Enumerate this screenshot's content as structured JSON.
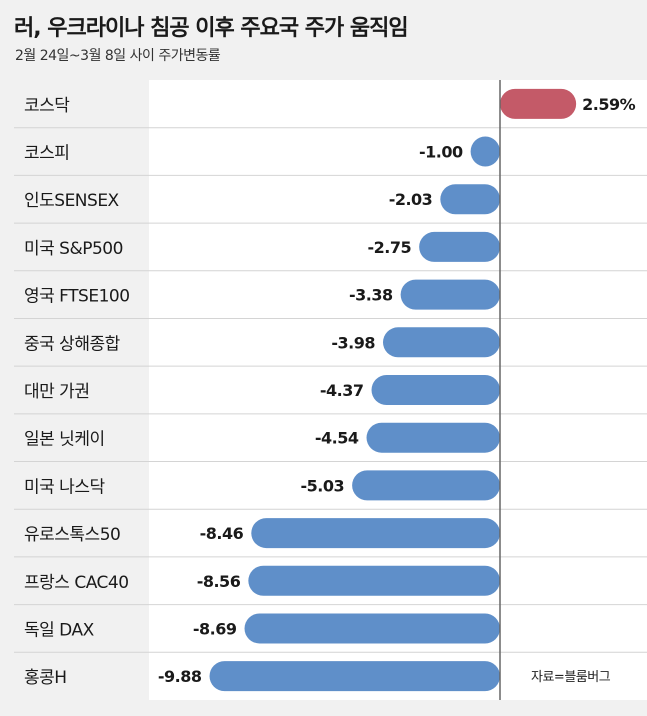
{
  "title": "러, 우크라이나 침공 이후 주요국 주가 움직임",
  "subtitle": "2월 24일~3월 8일 사이 주가변동률",
  "source": "자료=블룸버그",
  "colors": {
    "positive": "#c45a68",
    "negative": "#5f8fc9",
    "background": "#f1f1f1",
    "panel": "#ffffff",
    "row_divider": "#d4d4d4",
    "zero_line": "#666666"
  },
  "chart_data": {
    "type": "bar",
    "orientation": "horizontal",
    "title": "러, 우크라이나 침공 이후 주요국 주가 움직임",
    "subtitle": "2월 24일~3월 8일 사이 주가변동률",
    "categories": [
      "코스닥",
      "코스피",
      "인도SENSEX",
      "미국 S&P500",
      "영국 FTSE100",
      "중국 상해종합",
      "대만 가권",
      "일본 닛케이",
      "미국 나스닥",
      "유로스톡스50",
      "프랑스 CAC40",
      "독일 DAX",
      "홍콩H"
    ],
    "values": [
      2.59,
      -1.0,
      -2.03,
      -2.75,
      -3.38,
      -3.98,
      -4.37,
      -4.54,
      -5.03,
      -8.46,
      -8.56,
      -8.69,
      -9.88
    ],
    "value_labels": [
      "2.59%",
      "-1.00",
      "-2.03",
      "-2.75",
      "-3.38",
      "-3.98",
      "-4.37",
      "-4.54",
      "-5.03",
      "-8.46",
      "-8.56",
      "-8.69",
      "-9.88"
    ],
    "xlim": [
      -10,
      2.8
    ],
    "grid": false
  }
}
